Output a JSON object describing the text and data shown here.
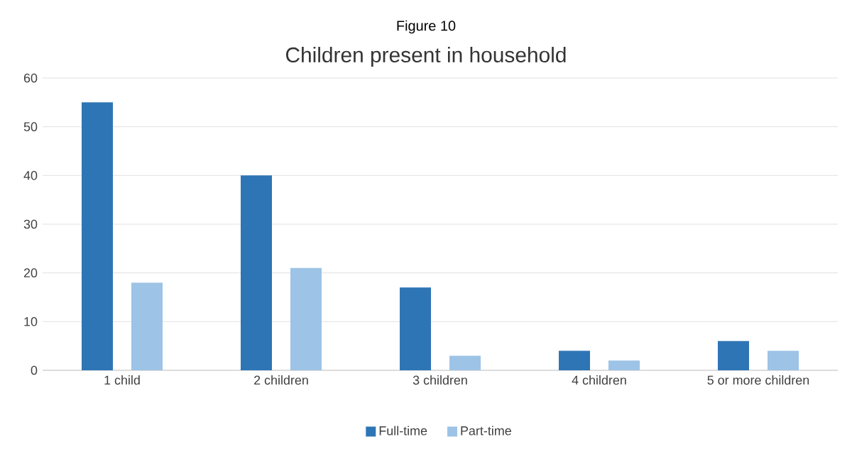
{
  "chart_data": {
    "type": "bar",
    "title": "Figure 10",
    "subtitle": "Children present in household",
    "categories": [
      "1 child",
      "2 children",
      "3 children",
      "4 children",
      "5 or more children"
    ],
    "series": [
      {
        "name": "Full-time",
        "color": "#2e75b6",
        "values": [
          55,
          40,
          17,
          4,
          6
        ]
      },
      {
        "name": "Part-time",
        "color": "#9dc3e6",
        "values": [
          18,
          21,
          3,
          2,
          4
        ]
      }
    ],
    "ylim": [
      0,
      60
    ],
    "yticks": [
      0,
      10,
      20,
      30,
      40,
      50,
      60
    ],
    "grid": "y",
    "legend": "bottom"
  }
}
